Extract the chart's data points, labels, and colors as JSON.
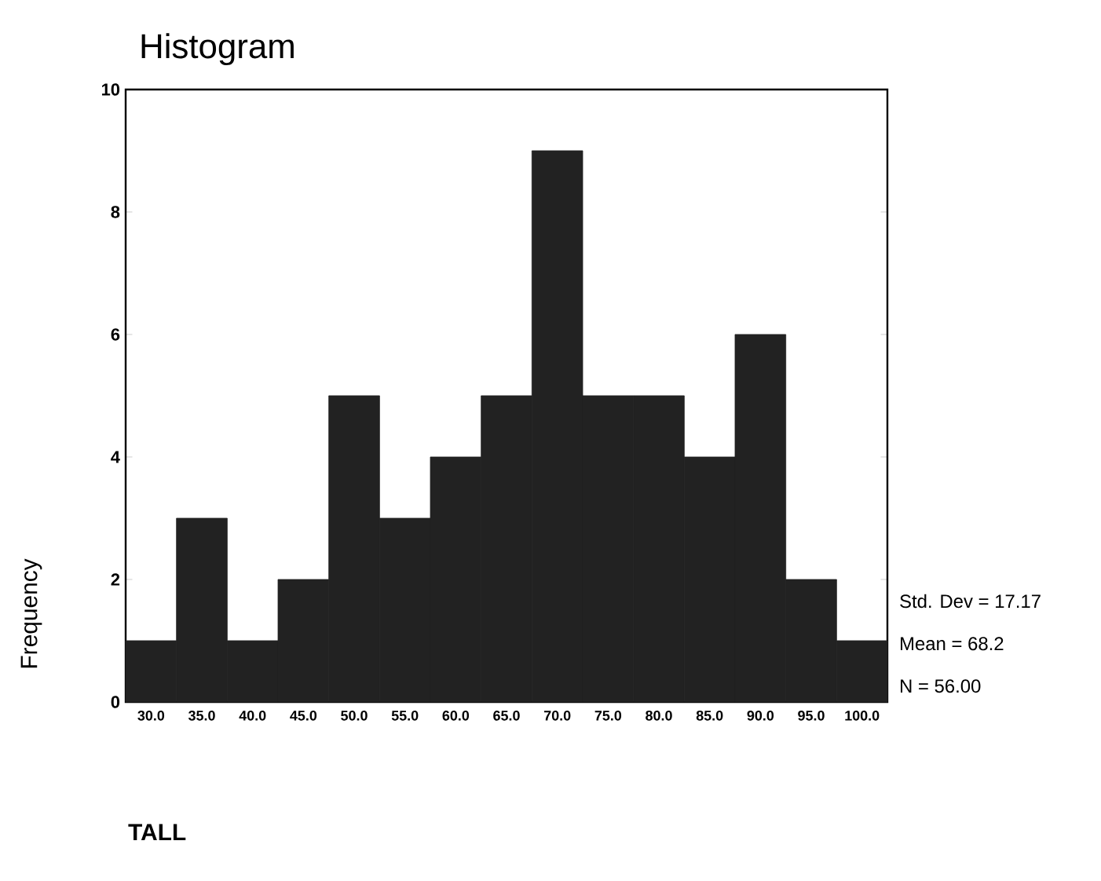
{
  "chart_data": {
    "type": "histogram",
    "title": "Histogram",
    "xlabel": "TALL",
    "ylabel": "Frequency",
    "bins": [
      27.5,
      32.5,
      37.5,
      42.5,
      47.5,
      52.5,
      57.5,
      62.5,
      67.5,
      72.5,
      77.5,
      82.5,
      87.5,
      92.5,
      97.5,
      102.5
    ],
    "values": [
      1,
      3,
      1,
      2,
      5,
      3,
      4,
      5,
      9,
      5,
      5,
      4,
      6,
      2,
      1
    ],
    "color": "#222222",
    "xlim": [
      27.5,
      102.5
    ],
    "ylim": [
      0,
      10
    ],
    "xticks": [
      {
        "value": 30,
        "label": "30.0"
      },
      {
        "value": 35,
        "label": "35.0"
      },
      {
        "value": 40,
        "label": "40.0"
      },
      {
        "value": 45,
        "label": "45.0"
      },
      {
        "value": 50,
        "label": "50.0"
      },
      {
        "value": 55,
        "label": "55.0"
      },
      {
        "value": 60,
        "label": "60.0"
      },
      {
        "value": 65,
        "label": "65.0"
      },
      {
        "value": 70,
        "label": "70.0"
      },
      {
        "value": 75,
        "label": "75.0"
      },
      {
        "value": 80,
        "label": "80.0"
      },
      {
        "value": 85,
        "label": "85.0"
      },
      {
        "value": 90,
        "label": "90.0"
      },
      {
        "value": 95,
        "label": "95.0"
      },
      {
        "value": 100,
        "label": "100.0"
      }
    ],
    "yticks": [
      0,
      2,
      4,
      6,
      8,
      10
    ],
    "annotations": [
      "Std. Dev = 17.17",
      "Mean = 68.2",
      "N = 56.00"
    ]
  }
}
